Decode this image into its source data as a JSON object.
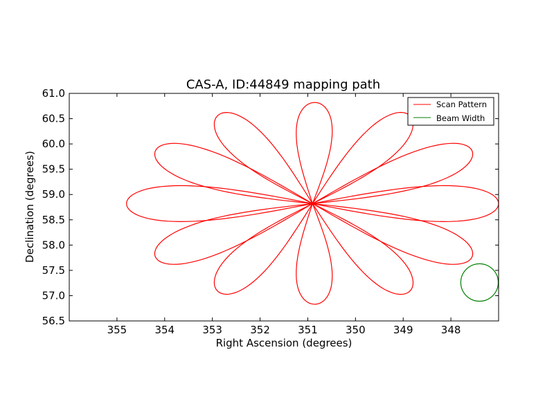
{
  "chart_data": {
    "type": "line",
    "title": "CAS-A, ID:44849 mapping path",
    "xlabel": "Right Ascension (degrees)",
    "ylabel": "Declination (degrees)",
    "xlim": [
      356.0,
      347.0
    ],
    "ylim": [
      56.5,
      61.0
    ],
    "x_inverted": true,
    "xticks": [
      355,
      354,
      353,
      352,
      351,
      350,
      349,
      348
    ],
    "xtick_labels": [
      "355",
      "354",
      "353",
      "352",
      "351",
      "350",
      "349",
      "348"
    ],
    "yticks": [
      56.5,
      57.0,
      57.5,
      58.0,
      58.5,
      59.0,
      59.5,
      60.0,
      60.5,
      61.0
    ],
    "ytick_labels": [
      "56.5",
      "57.0",
      "57.5",
      "58.0",
      "58.5",
      "59.0",
      "59.5",
      "60.0",
      "60.5",
      "61.0"
    ],
    "grid": false,
    "legend_position": "top-right",
    "series": [
      {
        "name": "Scan Pattern",
        "color": "#ff0000",
        "kind": "rose",
        "center": [
          350.9,
          58.82
        ],
        "petal_angles_deg": [
          90,
          60,
          30,
          0,
          -30,
          -60,
          -90,
          -120,
          -150,
          180,
          150,
          120
        ],
        "petal_tips": [
          [
            350.85,
            60.82
          ],
          [
            348.85,
            60.55
          ],
          [
            347.55,
            59.85
          ],
          [
            347.0,
            58.82
          ],
          [
            347.55,
            57.78
          ],
          [
            348.85,
            57.1
          ],
          [
            350.85,
            56.83
          ],
          [
            352.9,
            57.1
          ],
          [
            354.2,
            57.78
          ],
          [
            354.8,
            58.82
          ],
          [
            354.2,
            59.85
          ],
          [
            352.9,
            60.55
          ]
        ]
      },
      {
        "name": "Beam Width",
        "color": "#008000",
        "kind": "circle",
        "center": [
          347.4,
          57.26
        ],
        "radius_dec": 0.37
      }
    ]
  }
}
